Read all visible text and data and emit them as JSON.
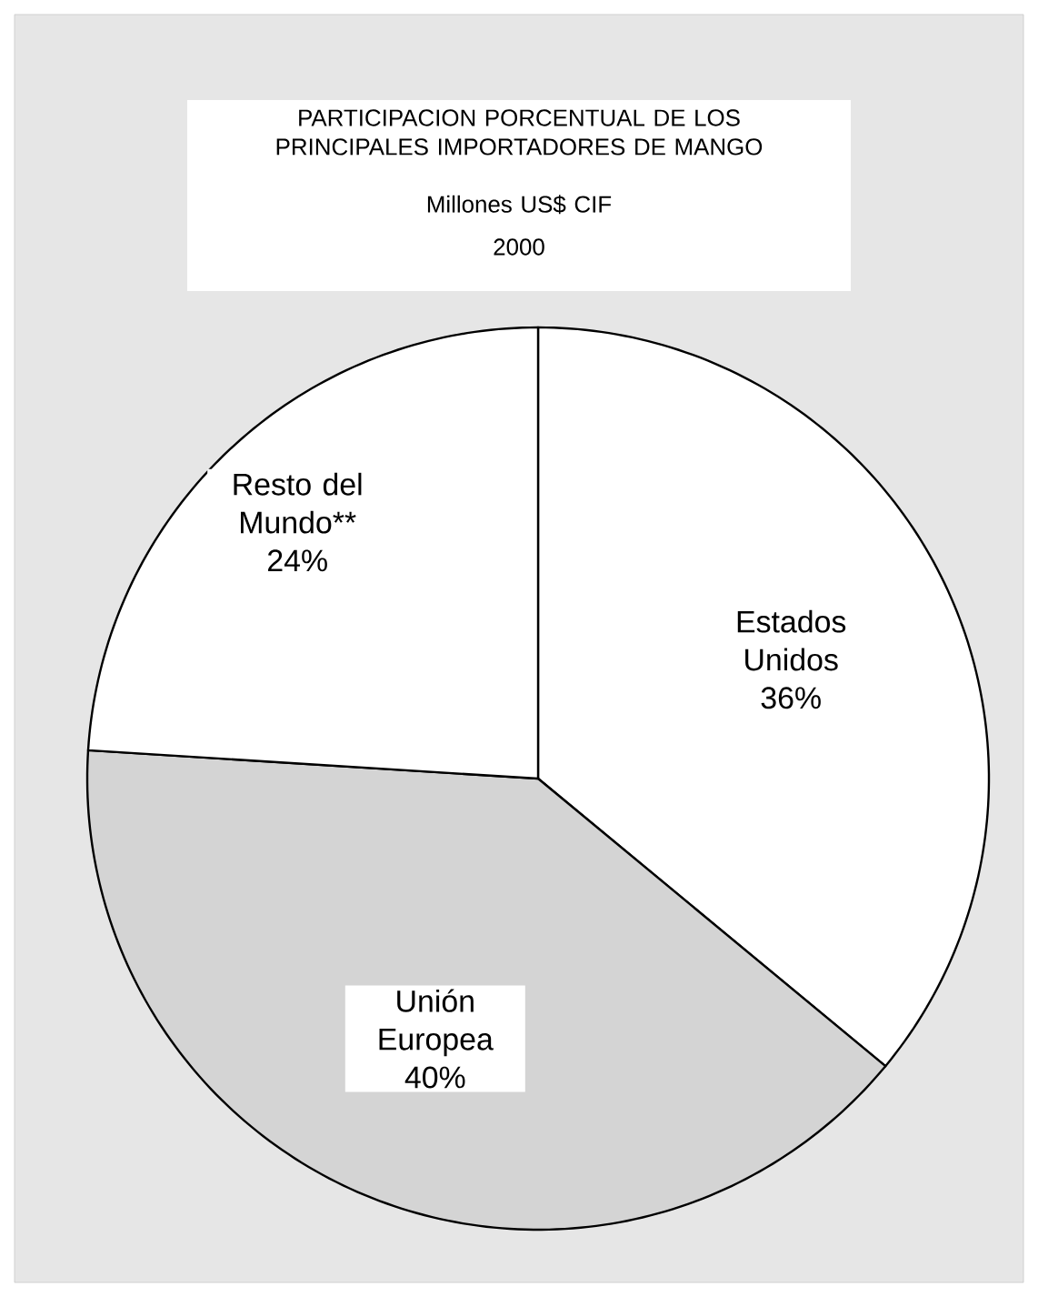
{
  "chart_data": {
    "type": "pie",
    "title": "PARTICIPACION PORCENTUAL DE LOS PRINCIPALES IMPORTADORES DE MANGO",
    "subtitle": "Millones US$ CIF",
    "annotations": [
      "2000"
    ],
    "categories": [
      "Estados Unidos",
      "Unión Europea",
      "Resto del Mundo**"
    ],
    "values": [
      36,
      40,
      24
    ],
    "value_labels": [
      "36%",
      "40%",
      "24%"
    ],
    "colors": [
      "#ffffff",
      "#d4d4d4",
      "#ffffff"
    ]
  }
}
